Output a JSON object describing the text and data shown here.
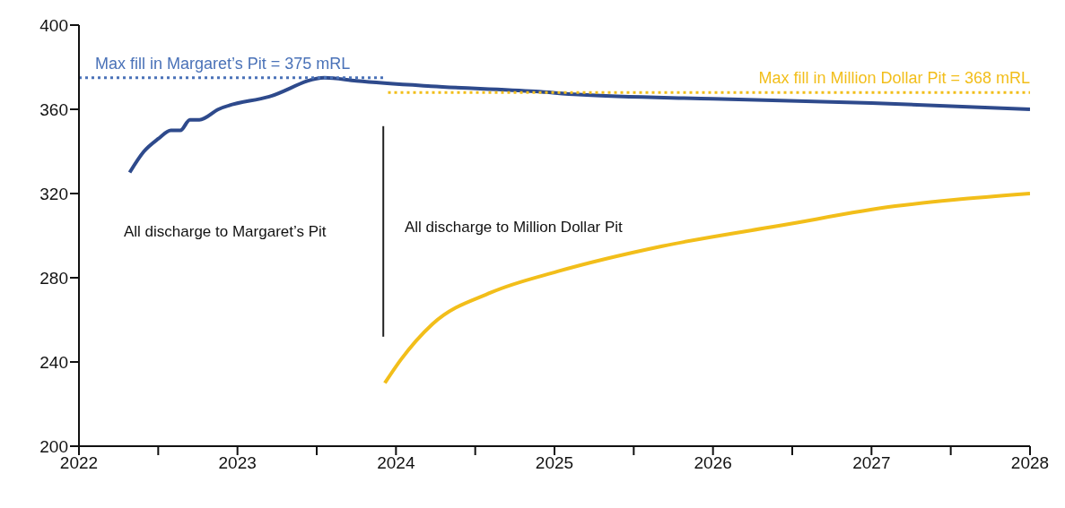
{
  "chart_data": {
    "type": "line",
    "xlim": [
      2022,
      2028
    ],
    "xticks": [
      2022,
      {
        "value": 2022.5,
        "label": null
      },
      2023,
      {
        "value": 2023.5,
        "label": null
      },
      2024,
      {
        "value": 2024.5,
        "label": null
      },
      2025,
      {
        "value": 2025.5,
        "label": null
      },
      2026,
      {
        "value": 2026.5,
        "label": null
      },
      2027,
      {
        "value": 2027.5,
        "label": null
      },
      2028
    ],
    "ylim": [
      200,
      400
    ],
    "yticks": [
      200,
      240,
      280,
      320,
      360,
      400
    ],
    "grid": false,
    "legend": false,
    "marker": "none",
    "line_style": "solid",
    "series": [
      {
        "color": "#2e4a8c",
        "x": [
          2022.32,
          2022.41,
          2022.5,
          2022.58,
          2022.64,
          2022.7,
          2022.76,
          2022.88,
          2023.2,
          2023.55,
          2023.75,
          2024.22,
          2024.88,
          2025.15,
          2026,
          2027,
          2028
        ],
        "values": [
          330,
          340,
          346,
          350,
          350,
          355,
          355,
          360,
          366,
          375,
          373.5,
          371,
          368.5,
          367,
          365,
          363,
          360
        ]
      },
      {
        "color": "#f2be1a",
        "x": [
          2023.93,
          2024.03,
          2024.23,
          2024.6,
          2025.02,
          2025.68,
          2026.44,
          2027.15,
          2027.52,
          2028
        ],
        "values": [
          230,
          241,
          258,
          273,
          283,
          295,
          305,
          314,
          317,
          320
        ]
      }
    ],
    "ref_lines": [
      {
        "axis": "y",
        "value": 375,
        "label": "Max fill in Margaret’s Pit = 375 mRL",
        "color": "#4a72b8",
        "line_style": "dotted"
      },
      {
        "axis": "y",
        "value": 368,
        "label": "Max fill in Million Dollar Pit = 368 mRL",
        "color": "#f2be1a",
        "line_style": "dotted"
      },
      {
        "axis": "x",
        "value": 2023.92,
        "label": null,
        "color": "#222222",
        "line_style": "solid"
      }
    ],
    "annotations": [
      "All discharge to Margaret’s Pit",
      "All discharge to Million Dollar Pit"
    ]
  }
}
